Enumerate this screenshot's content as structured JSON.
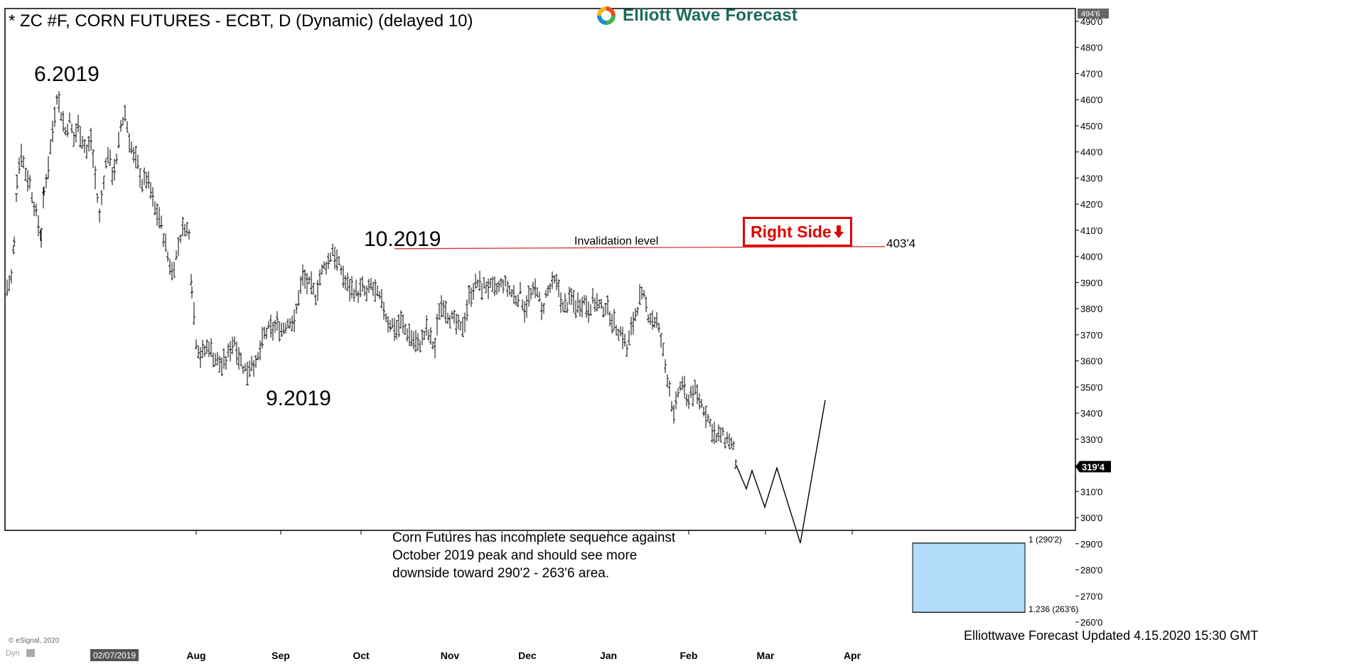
{
  "header": {
    "title": "* ZC #F, CORN FUTURES - ECBT, D (Dynamic) (delayed 10)",
    "logo_text": "Elliott Wave Forecast"
  },
  "labels": {
    "wave_6_2019": "6.2019",
    "wave_9_2019": "9.2019",
    "wave_10_2019": "10.2019",
    "invalidation": "Invalidation level",
    "invalidation_price": "403'4",
    "right_side": "Right Side",
    "target_1": "1 (290'2)",
    "target_1236": "1.236 (263'6)",
    "note_lines": [
      "Corn Futures has incomplete sequence against",
      "October 2019 peak and should see more",
      "downside toward 290'2 - 263'6 area."
    ],
    "updated": "Elliottwave Forecast Updated 4.15.2020 15:30 GMT",
    "copyright": "© eSignal, 2020",
    "dyn": "Dyn"
  },
  "colors": {
    "invalidation_line": "#e03030",
    "right_side": "#e00000",
    "target_box": "#b3dcfa",
    "logo_text": "#1b6b5c",
    "last_price_bg": "#000000"
  },
  "chart_data": {
    "type": "ohlc",
    "title": "* ZC #F, CORN FUTURES - ECBT, D (Dynamic) (delayed 10)",
    "y_ticks": [
      "260'0",
      "270'0",
      "280'0",
      "290'0",
      "300'0",
      "310'0",
      "320'0",
      "330'0",
      "340'0",
      "350'0",
      "360'0",
      "370'0",
      "380'0",
      "390'0",
      "400'0",
      "410'0",
      "420'0",
      "430'0",
      "440'0",
      "450'0",
      "460'0",
      "470'0",
      "480'0",
      "490'0"
    ],
    "y_top_label": "494'6",
    "last_price_label": "319'4",
    "last_price": 319.5,
    "x_start_label": "02/07/2019",
    "x_months": [
      "Aug",
      "Sep",
      "Oct",
      "Nov",
      "Dec",
      "Jan",
      "Feb",
      "Mar",
      "Apr"
    ],
    "ylim": [
      255,
      495
    ],
    "invalidation_level": 403.5,
    "target_zone": [
      263.75,
      290.25
    ],
    "price_path": [
      [
        0,
        388
      ],
      [
        6,
        392
      ],
      [
        10,
        405
      ],
      [
        14,
        430
      ],
      [
        20,
        440
      ],
      [
        26,
        432
      ],
      [
        32,
        428
      ],
      [
        38,
        420
      ],
      [
        44,
        412
      ],
      [
        48,
        408
      ],
      [
        52,
        425
      ],
      [
        58,
        435
      ],
      [
        64,
        448
      ],
      [
        70,
        462
      ],
      [
        76,
        455
      ],
      [
        82,
        448
      ],
      [
        88,
        452
      ],
      [
        94,
        445
      ],
      [
        100,
        450
      ],
      [
        106,
        445
      ],
      [
        112,
        440
      ],
      [
        118,
        445
      ],
      [
        124,
        430
      ],
      [
        130,
        415
      ],
      [
        136,
        430
      ],
      [
        142,
        440
      ],
      [
        148,
        432
      ],
      [
        154,
        436
      ],
      [
        160,
        450
      ],
      [
        166,
        455
      ],
      [
        172,
        445
      ],
      [
        178,
        438
      ],
      [
        184,
        435
      ],
      [
        190,
        428
      ],
      [
        196,
        430
      ],
      [
        202,
        425
      ],
      [
        208,
        418
      ],
      [
        214,
        415
      ],
      [
        220,
        408
      ],
      [
        226,
        400
      ],
      [
        232,
        394
      ],
      [
        238,
        400
      ],
      [
        244,
        408
      ],
      [
        250,
        412
      ],
      [
        256,
        408
      ],
      [
        260,
        388
      ],
      [
        266,
        368
      ],
      [
        272,
        362
      ],
      [
        278,
        364
      ],
      [
        284,
        366
      ],
      [
        290,
        362
      ],
      [
        296,
        360
      ],
      [
        302,
        358
      ],
      [
        308,
        360
      ],
      [
        314,
        365
      ],
      [
        320,
        368
      ],
      [
        326,
        362
      ],
      [
        332,
        358
      ],
      [
        338,
        356
      ],
      [
        344,
        360
      ],
      [
        350,
        358
      ],
      [
        356,
        364
      ],
      [
        362,
        370
      ],
      [
        368,
        372
      ],
      [
        374,
        372
      ],
      [
        380,
        374
      ],
      [
        386,
        372
      ],
      [
        392,
        374
      ],
      [
        398,
        376
      ],
      [
        404,
        374
      ],
      [
        410,
        385
      ],
      [
        416,
        392
      ],
      [
        422,
        390
      ],
      [
        428,
        388
      ],
      [
        434,
        385
      ],
      [
        440,
        392
      ],
      [
        446,
        396
      ],
      [
        452,
        398
      ],
      [
        458,
        403
      ],
      [
        464,
        398
      ],
      [
        470,
        395
      ],
      [
        476,
        390
      ],
      [
        482,
        388
      ],
      [
        488,
        387
      ],
      [
        494,
        386
      ],
      [
        500,
        388
      ],
      [
        506,
        385
      ],
      [
        512,
        389
      ],
      [
        518,
        386
      ],
      [
        524,
        384
      ],
      [
        530,
        380
      ],
      [
        536,
        375
      ],
      [
        542,
        374
      ],
      [
        548,
        372
      ],
      [
        554,
        375
      ],
      [
        560,
        372
      ],
      [
        566,
        370
      ],
      [
        572,
        368
      ],
      [
        578,
        366
      ],
      [
        584,
        368
      ],
      [
        590,
        372
      ],
      [
        596,
        368
      ],
      [
        602,
        365
      ],
      [
        608,
        380
      ],
      [
        614,
        382
      ],
      [
        620,
        378
      ],
      [
        626,
        376
      ],
      [
        632,
        374
      ],
      [
        638,
        372
      ],
      [
        644,
        376
      ],
      [
        650,
        384
      ],
      [
        656,
        388
      ],
      [
        662,
        390
      ],
      [
        668,
        388
      ],
      [
        674,
        389
      ],
      [
        680,
        388
      ],
      [
        686,
        387
      ],
      [
        692,
        388
      ],
      [
        698,
        390
      ],
      [
        704,
        388
      ],
      [
        710,
        386
      ],
      [
        716,
        384
      ],
      [
        722,
        386
      ],
      [
        728,
        380
      ],
      [
        734,
        384
      ],
      [
        740,
        386
      ],
      [
        746,
        388
      ],
      [
        752,
        378
      ],
      [
        758,
        385
      ],
      [
        764,
        388
      ],
      [
        770,
        390
      ],
      [
        776,
        388
      ],
      [
        782,
        380
      ],
      [
        788,
        382
      ],
      [
        794,
        384
      ],
      [
        800,
        381
      ],
      [
        806,
        382
      ],
      [
        812,
        383
      ],
      [
        818,
        380
      ],
      [
        824,
        383
      ],
      [
        830,
        382
      ],
      [
        836,
        380
      ],
      [
        842,
        381
      ],
      [
        848,
        378
      ],
      [
        854,
        374
      ],
      [
        860,
        372
      ],
      [
        866,
        370
      ],
      [
        872,
        364
      ],
      [
        878,
        372
      ],
      [
        884,
        378
      ],
      [
        890,
        384
      ],
      [
        896,
        384
      ],
      [
        902,
        378
      ],
      [
        908,
        376
      ],
      [
        914,
        375
      ],
      [
        920,
        368
      ],
      [
        926,
        358
      ],
      [
        932,
        350
      ],
      [
        938,
        338
      ],
      [
        944,
        348
      ],
      [
        950,
        352
      ],
      [
        956,
        344
      ],
      [
        962,
        348
      ],
      [
        968,
        348
      ],
      [
        974,
        345
      ],
      [
        980,
        342
      ],
      [
        986,
        338
      ],
      [
        992,
        334
      ],
      [
        998,
        330
      ],
      [
        1004,
        332
      ],
      [
        1010,
        330
      ],
      [
        1016,
        330
      ],
      [
        1022,
        326
      ],
      [
        1026,
        320
      ]
    ],
    "projection_path": [
      [
        1026,
        320
      ],
      [
        1040,
        311
      ],
      [
        1048,
        318
      ],
      [
        1066,
        304
      ],
      [
        1083,
        319
      ],
      [
        1116,
        290.25
      ],
      [
        1151,
        345
      ]
    ]
  }
}
